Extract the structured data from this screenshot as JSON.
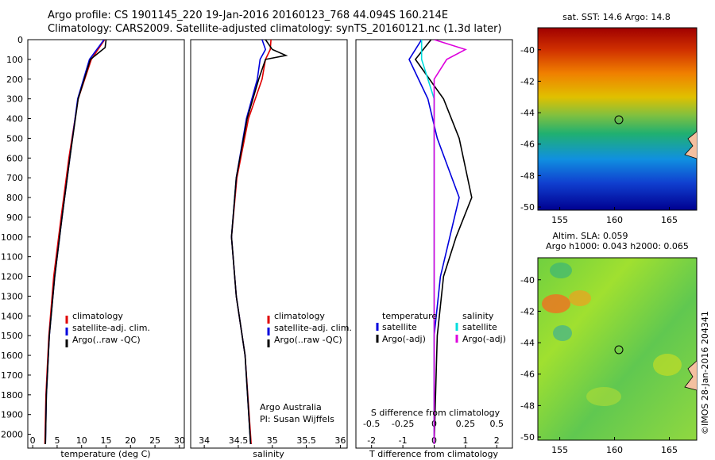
{
  "header": {
    "line1": "Argo profile: CS 1901145_220 19-Jan-2016 20160123_768 44.094S 160.214E",
    "line2": "Climatology: CARS2009. Satellite-adjusted climatology: synTS_20160121.nc (1.3d later)"
  },
  "chart_data": [
    {
      "type": "line",
      "title": "Temperature profile",
      "xlabel": "temperature (deg C)",
      "xlim": [
        -1,
        31
      ],
      "ylim": [
        2070,
        0
      ],
      "xticks": [
        "0",
        "5",
        "10",
        "15",
        "20",
        "25",
        "30"
      ],
      "yticks": [
        "0",
        "100",
        "200",
        "300",
        "400",
        "500",
        "600",
        "700",
        "800",
        "900",
        "1000",
        "1100",
        "1200",
        "1300",
        "1400",
        "1500",
        "1600",
        "1700",
        "1800",
        "1900",
        "2000"
      ],
      "legend": [
        "climatology",
        "satellite-adj. clim.",
        "Argo(..raw -QC)"
      ],
      "series": [
        {
          "name": "climatology",
          "color": "#e00000",
          "depth": [
            0,
            100,
            300,
            600,
            900,
            1200,
            1500,
            1800,
            2050
          ],
          "values": [
            14.7,
            12.0,
            9.3,
            7.4,
            5.8,
            4.3,
            3.3,
            2.7,
            2.5
          ]
        },
        {
          "name": "satellite-adj. clim.",
          "color": "#0000dd",
          "depth": [
            0,
            100,
            300,
            600,
            900,
            1200,
            1500,
            1800,
            2050
          ],
          "values": [
            14.6,
            11.6,
            9.2,
            7.6,
            6.0,
            4.5,
            3.4,
            2.8,
            2.6
          ]
        },
        {
          "name": "Argo(..raw -QC)",
          "color": "#000000",
          "depth": [
            0,
            40,
            100,
            300,
            600,
            900,
            1200,
            1500,
            1800,
            2050
          ],
          "values": [
            15.0,
            14.8,
            11.8,
            9.3,
            7.6,
            6.0,
            4.5,
            3.4,
            2.8,
            2.6
          ]
        }
      ]
    },
    {
      "type": "line",
      "title": "Salinity profile",
      "xlabel": "salinity",
      "xlim": [
        33.8,
        36.1
      ],
      "ylim": [
        2070,
        0
      ],
      "xticks": [
        "34",
        "34.5",
        "35",
        "35.5",
        "36"
      ],
      "legend": [
        "climatology",
        "satellite-adj. clim.",
        "Argo(..raw -QC)"
      ],
      "annotation": [
        "Argo Australia",
        "PI: Susan Wijffels"
      ],
      "series": [
        {
          "name": "climatology",
          "color": "#e00000",
          "depth": [
            0,
            50,
            100,
            200,
            400,
            700,
            1000,
            1300,
            1600,
            2050
          ],
          "values": [
            34.98,
            34.97,
            34.9,
            34.85,
            34.65,
            34.48,
            34.4,
            34.47,
            34.6,
            34.69
          ]
        },
        {
          "name": "satellite-adj. clim.",
          "color": "#0000dd",
          "depth": [
            0,
            50,
            100,
            200,
            400,
            700,
            1000,
            1300,
            1600,
            2050
          ],
          "values": [
            34.85,
            34.9,
            34.82,
            34.78,
            34.62,
            34.47,
            34.4,
            34.47,
            34.6,
            34.68
          ]
        },
        {
          "name": "Argo(..raw -QC)",
          "color": "#000000",
          "depth": [
            0,
            50,
            80,
            100,
            200,
            400,
            700,
            1000,
            1300,
            1600,
            2050
          ],
          "values": [
            34.9,
            35.0,
            35.2,
            34.9,
            34.8,
            34.63,
            34.47,
            34.4,
            34.47,
            34.6,
            34.68
          ]
        }
      ]
    },
    {
      "type": "line",
      "title": "Differences from climatology",
      "xlabel": "T difference from climatology",
      "xlabel2": "S difference from climatology",
      "xlim": [
        -2.5,
        2.5
      ],
      "ylim": [
        2070,
        0
      ],
      "xticks": [
        "-2",
        "-1",
        "0",
        "1",
        "2"
      ],
      "xticks2": [
        "-0.5",
        "-0.25",
        "0",
        "0.25",
        "0.5"
      ],
      "legend_headers": [
        "temperature",
        "salinity"
      ],
      "legend": [
        "satellite",
        "Argo(-adj)",
        "satellite",
        "Argo(-adj)"
      ],
      "series": [
        {
          "name": "temperature satellite",
          "color": "#0000dd",
          "depth": [
            0,
            100,
            300,
            500,
            800,
            1000,
            1200,
            1500,
            2050
          ],
          "values": [
            -0.4,
            -0.8,
            -0.2,
            0.1,
            0.8,
            0.5,
            0.2,
            0.0,
            0.0
          ]
        },
        {
          "name": "temperature Argo(-adj)",
          "color": "#000000",
          "depth": [
            0,
            100,
            300,
            500,
            800,
            1000,
            1200,
            1500,
            2050
          ],
          "values": [
            -0.1,
            -0.6,
            0.3,
            0.8,
            1.2,
            0.7,
            0.3,
            0.1,
            0.0
          ]
        },
        {
          "name": "salinity satellite",
          "color": "#00dddd",
          "depth": [
            0,
            100,
            300,
            500,
            800,
            1200,
            1500,
            2050
          ],
          "values": [
            -0.1,
            -0.1,
            0.0,
            0.0,
            0.0,
            0.0,
            0.0,
            0.0
          ]
        },
        {
          "name": "salinity Argo(-adj)",
          "color": "#dd00dd",
          "depth": [
            0,
            50,
            100,
            200,
            1200,
            1500,
            2050
          ],
          "values": [
            0.0,
            0.25,
            0.1,
            0.0,
            0.0,
            0.0,
            0.0
          ]
        }
      ]
    },
    {
      "type": "heatmap",
      "title": "sat. SST: 14.6 Argo: 14.8",
      "xticks": [
        "155",
        "160",
        "165"
      ],
      "yticks": [
        "-40",
        "-42",
        "-44",
        "-46",
        "-48",
        "-50"
      ],
      "marker": {
        "lon": 160.214,
        "lat": -44.094
      }
    },
    {
      "type": "heatmap",
      "title": "Altim. SLA: 0.059",
      "subtitle": "Argo h1000: 0.043 h2000: 0.065",
      "xticks": [
        "155",
        "160",
        "165"
      ],
      "yticks": [
        "-40",
        "-42",
        "-44",
        "-46",
        "-48",
        "-50"
      ],
      "marker": {
        "lon": 160.214,
        "lat": -44.094
      }
    }
  ],
  "credit": "©IMOS 28-Jan-2016 204341",
  "colors": {
    "clim": "#e00000",
    "sat": "#0000dd",
    "argo": "#000000",
    "sal_sat": "#00dddd",
    "sal_argo": "#dd00dd"
  }
}
